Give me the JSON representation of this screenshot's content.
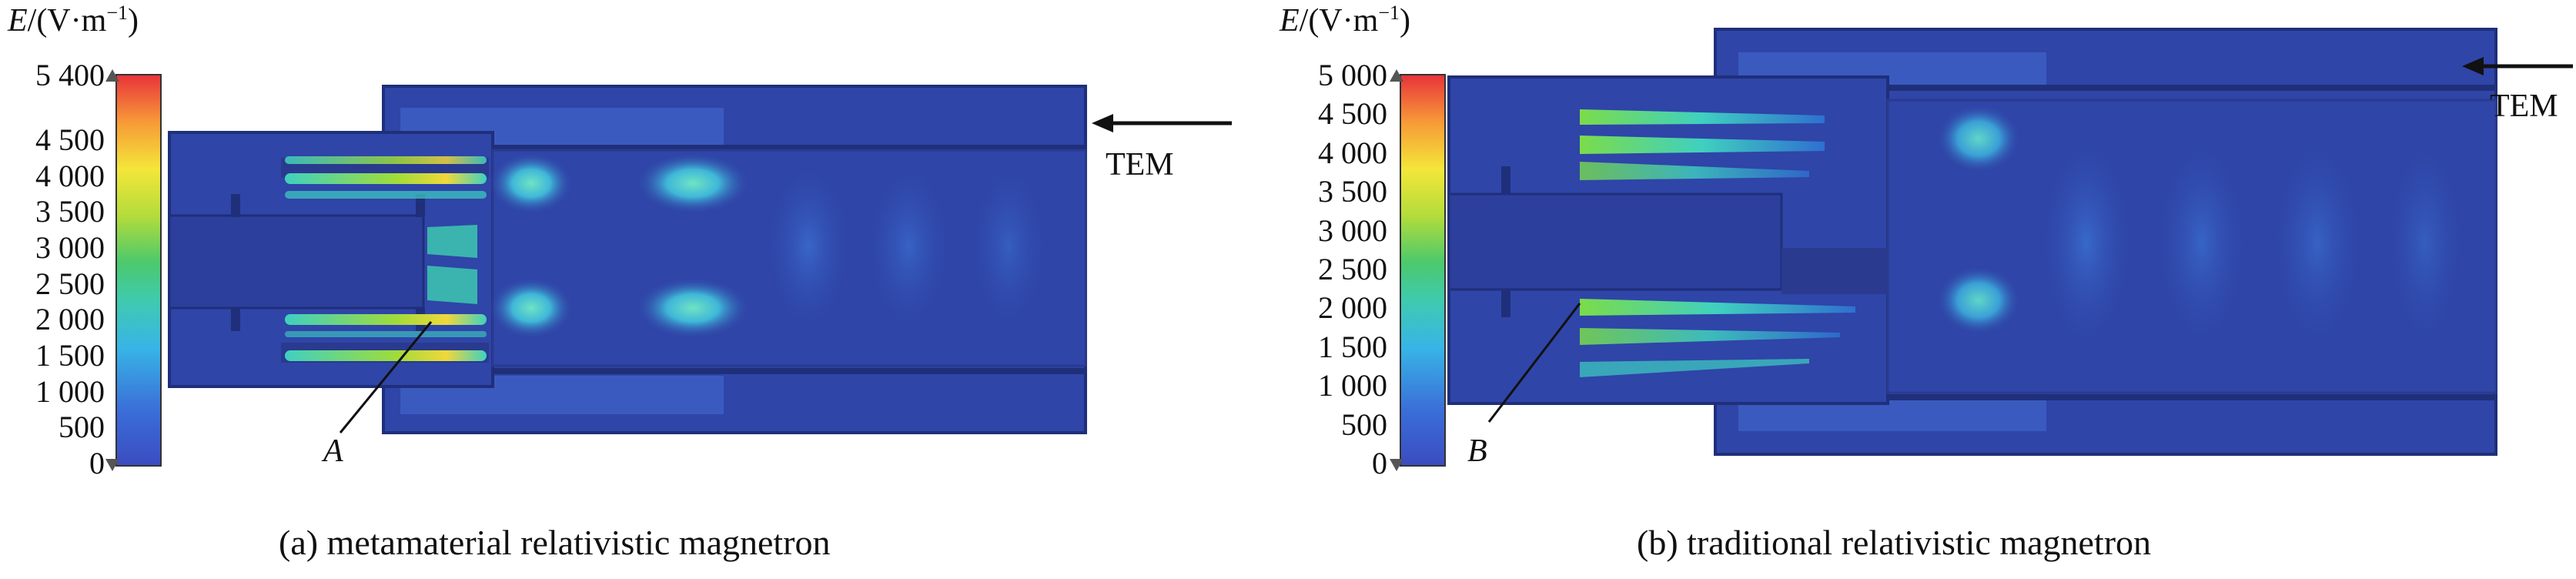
{
  "panel_a": {
    "unit_label": {
      "symbol": "E",
      "unit": "/(V·m",
      "exp": "−1",
      "close": ")"
    },
    "colorbar_ticks": [
      "5 400",
      "4 500",
      "4 000",
      "3 500",
      "3 000",
      "2 500",
      "2 000",
      "1 500",
      "1 000",
      "500",
      "0"
    ],
    "colorbar_values": [
      5400,
      4500,
      4000,
      3500,
      3000,
      2500,
      2000,
      1500,
      1000,
      500,
      0
    ],
    "colorbar_max": 5400,
    "port_label": "TEM",
    "marker": "A",
    "caption": "(a) metamaterial relativistic magnetron"
  },
  "panel_b": {
    "unit_label": {
      "symbol": "E",
      "unit": "/(V·m",
      "exp": "−1",
      "close": ")"
    },
    "colorbar_ticks": [
      "5 000",
      "4 500",
      "4 000",
      "3 500",
      "3 000",
      "2 500",
      "2 000",
      "1 500",
      "1 000",
      "500",
      "0"
    ],
    "colorbar_values": [
      5000,
      4500,
      4000,
      3500,
      3000,
      2500,
      2000,
      1500,
      1000,
      500,
      0
    ],
    "colorbar_max": 5000,
    "port_label": "TEM",
    "marker": "B",
    "caption": "(b) traditional relativistic magnetron"
  },
  "colors": {
    "field_base": "#2f45a8",
    "field_dark": "#1f2f7a",
    "field_edge": "#2a3a8e",
    "hot_low": "#3fd0c0",
    "hot_mid": "#7bdc4a",
    "hot_high": "#f0d83a"
  }
}
